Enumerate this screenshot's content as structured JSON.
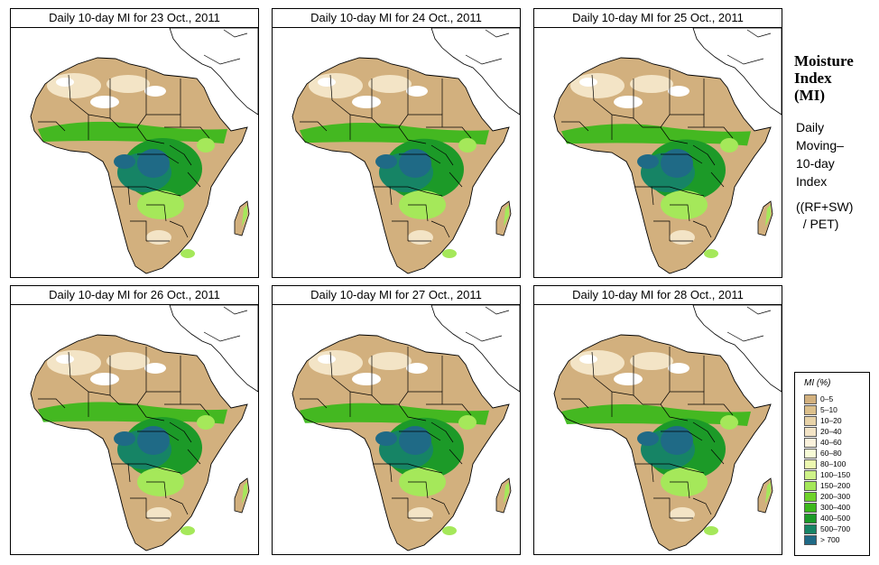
{
  "panels": [
    {
      "title": "Daily 10-day MI for  23 Oct., 2011",
      "shift": 0
    },
    {
      "title": "Daily 10-day MI for  24 Oct., 2011",
      "shift": 1
    },
    {
      "title": "Daily 10-day MI for  25 Oct., 2011",
      "shift": 2
    },
    {
      "title": "Daily 10-day MI for  26 Oct., 2011",
      "shift": 3
    },
    {
      "title": "Daily 10-day MI for  27 Oct., 2011",
      "shift": 4
    },
    {
      "title": "Daily 10-day MI for  28 Oct., 2011",
      "shift": 5
    }
  ],
  "side": {
    "title_lines": [
      "Moisture",
      "Index",
      "(MI)"
    ],
    "desc_lines": [
      "Daily",
      "Moving–",
      "10-day",
      "Index"
    ],
    "formula_lines": [
      "((RF+SW)",
      "  / PET)"
    ]
  },
  "legend": {
    "title": "MI (%)",
    "classes": [
      {
        "label": "0–5",
        "color": "#d2b07e"
      },
      {
        "label": "5–10",
        "color": "#dcc08c"
      },
      {
        "label": "10–20",
        "color": "#e8d3a8"
      },
      {
        "label": "20–40",
        "color": "#f3e4c6"
      },
      {
        "label": "40–60",
        "color": "#fbf2dc"
      },
      {
        "label": "60–80",
        "color": "#f7fbd6"
      },
      {
        "label": "80–100",
        "color": "#ecf8b0"
      },
      {
        "label": "100–150",
        "color": "#cff388"
      },
      {
        "label": "150–200",
        "color": "#a5e85a"
      },
      {
        "label": "200–300",
        "color": "#6fd32b"
      },
      {
        "label": "300–400",
        "color": "#3cb81c"
      },
      {
        "label": "400–500",
        "color": "#1c9a28"
      },
      {
        "label": "500–700",
        "color": "#168465"
      },
      {
        "label": "> 700",
        "color": "#1f6a86"
      }
    ]
  },
  "colors": {
    "land_dry": "#d2b07e",
    "desert_light": "#f3e4c6",
    "desert_white": "#ffffff",
    "green_light": "#a5e85a",
    "green_mid": "#3cb81c",
    "green_dark": "#1c9a28",
    "teal": "#168465",
    "blue": "#1f6a86",
    "border_line": "#000000"
  }
}
